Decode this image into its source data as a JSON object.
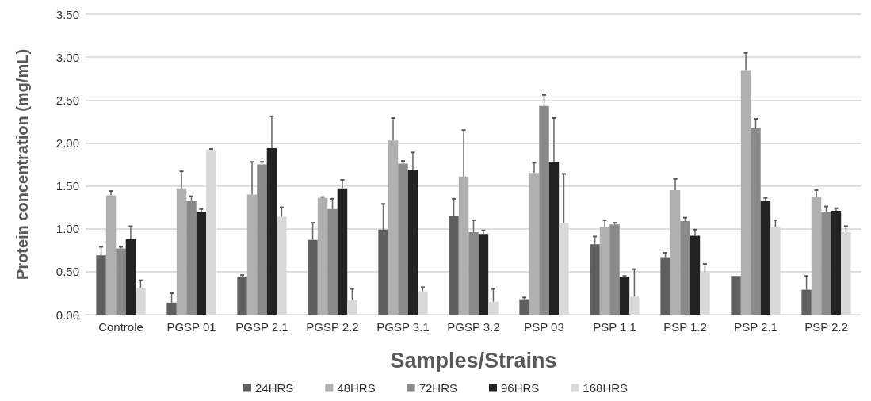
{
  "chart_data": {
    "type": "bar",
    "xlabel": "Samples/Strains",
    "ylabel": "Protein concentration (mg/mL)",
    "categories": [
      "Controle",
      "PGSP 01",
      "PGSP 2.1",
      "PGSP 2.2",
      "PGSP 3.1",
      "PGSP 3.2",
      "PSP 03",
      "PSP 1.1",
      "PSP 1.2",
      "PSP 2.1",
      "PSP 2.2"
    ],
    "series": [
      {
        "name": "24HRS",
        "color": "#5f5f5f",
        "values": [
          0.69,
          0.14,
          0.44,
          0.87,
          0.99,
          1.15,
          0.18,
          0.82,
          0.67,
          0.45,
          0.29
        ],
        "errors": [
          [
            0.69,
            0.79
          ],
          [
            0.14,
            0.25
          ],
          [
            0.44,
            0.46
          ],
          [
            0.87,
            1.07
          ],
          [
            0.99,
            1.29
          ],
          [
            1.15,
            1.35
          ],
          [
            0.18,
            0.2
          ],
          [
            0.82,
            0.91
          ],
          [
            0.67,
            0.72
          ],
          null,
          [
            0.29,
            0.45
          ]
        ]
      },
      {
        "name": "48HRS",
        "color": "#b0b0b0",
        "values": [
          1.39,
          1.47,
          1.4,
          1.36,
          2.03,
          1.61,
          1.65,
          1.02,
          1.45,
          2.85,
          1.37
        ],
        "errors": [
          [
            1.39,
            1.44
          ],
          [
            1.47,
            1.67
          ],
          [
            1.4,
            1.78
          ],
          [
            1.36,
            1.37
          ],
          [
            2.03,
            2.29
          ],
          [
            1.61,
            2.15
          ],
          [
            1.65,
            1.77
          ],
          [
            1.02,
            1.1
          ],
          [
            1.45,
            1.58
          ],
          [
            2.85,
            3.05
          ],
          [
            1.37,
            1.45
          ]
        ]
      },
      {
        "name": "72HRS",
        "color": "#8a8a8a",
        "values": [
          0.77,
          1.32,
          1.75,
          1.23,
          1.76,
          0.96,
          2.43,
          1.05,
          1.09,
          2.17,
          1.2
        ],
        "errors": [
          [
            0.77,
            0.79
          ],
          [
            1.32,
            1.38
          ],
          [
            1.75,
            1.78
          ],
          [
            1.23,
            1.35
          ],
          [
            1.76,
            1.79
          ],
          [
            0.96,
            1.1
          ],
          [
            2.43,
            2.56
          ],
          [
            1.05,
            1.07
          ],
          [
            1.09,
            1.13
          ],
          [
            2.17,
            2.28
          ],
          [
            1.2,
            1.26
          ]
        ]
      },
      {
        "name": "96HRS",
        "color": "#222222",
        "values": [
          0.88,
          1.2,
          1.94,
          1.47,
          1.69,
          0.94,
          1.78,
          0.44,
          0.92,
          1.32,
          1.21
        ],
        "errors": [
          [
            0.88,
            1.03
          ],
          [
            1.2,
            1.23
          ],
          [
            1.94,
            2.31
          ],
          [
            1.47,
            1.57
          ],
          [
            1.69,
            1.89
          ],
          [
            0.94,
            0.98
          ],
          [
            1.78,
            2.29
          ],
          [
            0.44,
            0.45
          ],
          [
            0.92,
            0.99
          ],
          [
            1.32,
            1.36
          ],
          [
            1.21,
            1.24
          ]
        ]
      },
      {
        "name": "168HRS",
        "color": "#d9d9d9",
        "values": [
          0.31,
          1.92,
          1.14,
          0.17,
          0.27,
          0.15,
          1.07,
          0.21,
          0.49,
          1.02,
          0.96
        ],
        "errors": [
          [
            0.31,
            0.4
          ],
          [
            1.92,
            1.93
          ],
          [
            1.14,
            1.25
          ],
          [
            0.17,
            0.3
          ],
          [
            0.27,
            0.32
          ],
          [
            0.15,
            0.3
          ],
          [
            1.07,
            1.64
          ],
          [
            0.21,
            0.53
          ],
          [
            0.49,
            0.59
          ],
          [
            1.02,
            1.1
          ],
          [
            0.96,
            1.03
          ]
        ]
      }
    ],
    "ylim": [
      0,
      3.5
    ],
    "yticks": [
      {
        "value": 0,
        "label": "0.00"
      },
      {
        "value": 0.5,
        "label": "0.50"
      },
      {
        "value": 1,
        "label": "1.00"
      },
      {
        "value": 1.5,
        "label": "1.50"
      },
      {
        "value": 2,
        "label": "2.00"
      },
      {
        "value": 2.5,
        "label": "2.50"
      },
      {
        "value": 3,
        "label": "3.00"
      },
      {
        "value": 3.5,
        "label": "3.50"
      }
    ],
    "grid": "y",
    "legend": "bottom"
  }
}
